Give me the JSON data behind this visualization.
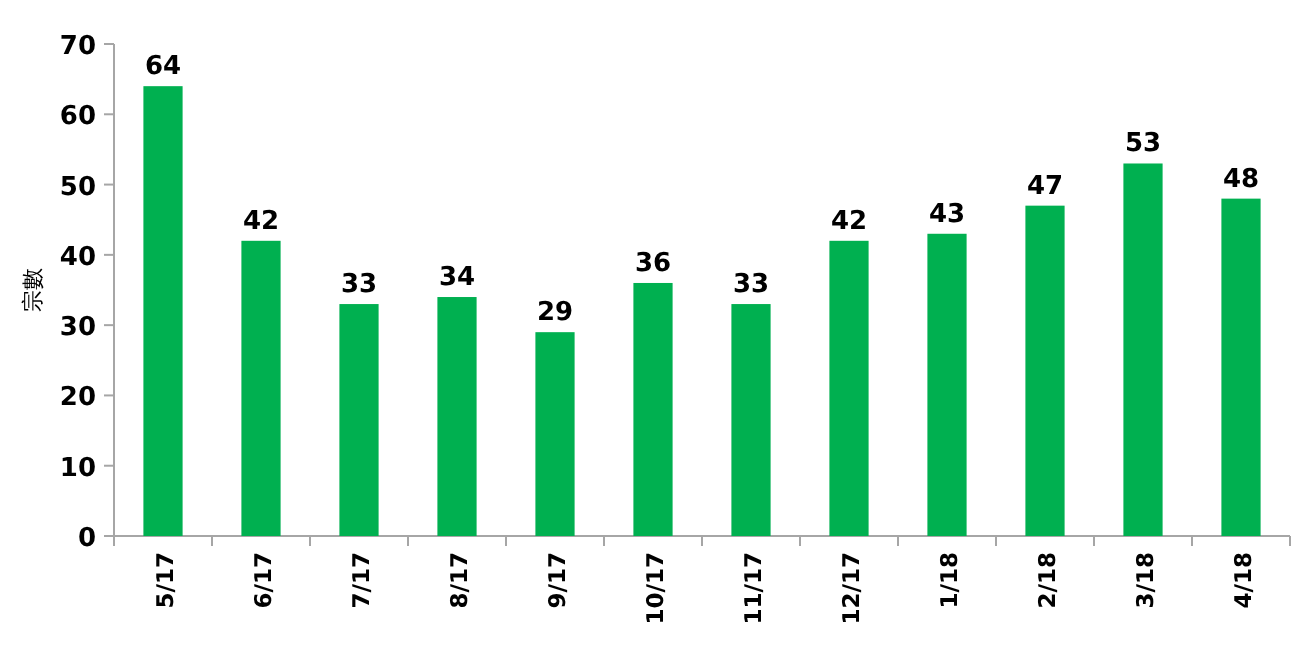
{
  "chart_data": {
    "type": "bar",
    "ylabel": "宗數",
    "categories": [
      "5/17",
      "6/17",
      "7/17",
      "8/17",
      "9/17",
      "10/17",
      "11/17",
      "12/17",
      "1/18",
      "2/18",
      "3/18",
      "4/18"
    ],
    "values": [
      64,
      42,
      33,
      34,
      29,
      36,
      33,
      42,
      43,
      47,
      53,
      48
    ],
    "color": "#00b050",
    "ylim": [
      0,
      70
    ],
    "yticks": [
      0,
      10,
      20,
      30,
      40,
      50,
      60,
      70
    ],
    "data_labels": true
  }
}
